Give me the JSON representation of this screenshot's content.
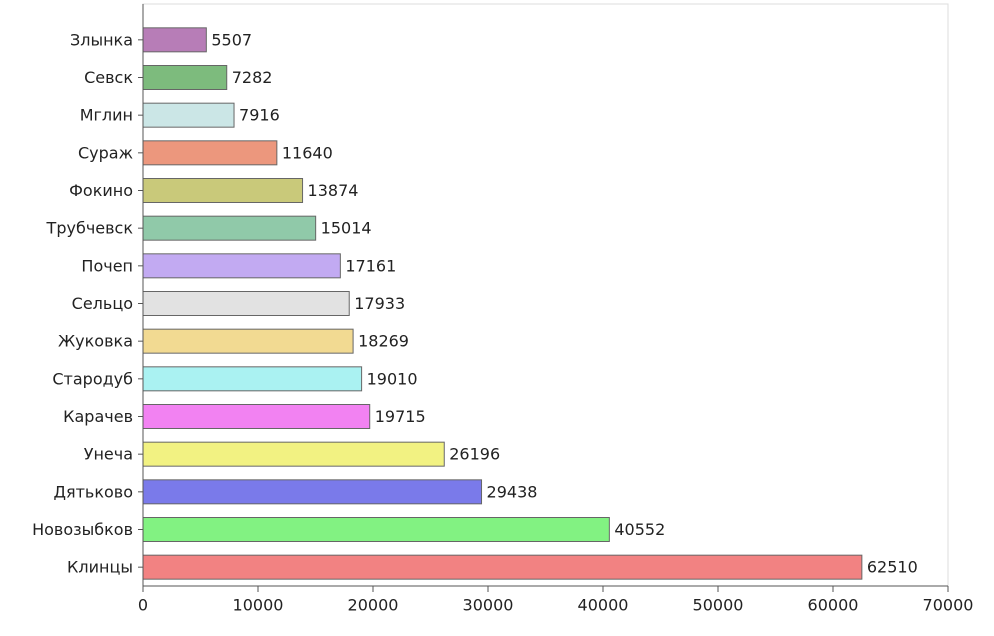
{
  "chart_data": {
    "type": "hbar",
    "categories": [
      "Злынка",
      "Севск",
      "Мглин",
      "Сураж",
      "Фокино",
      "Трубчевск",
      "Почеп",
      "Сельцо",
      "Жуковка",
      "Стародуб",
      "Карачев",
      "Унеча",
      "Дятьково",
      "Новозыбков",
      "Клинцы"
    ],
    "values": [
      5507,
      7282,
      7916,
      11640,
      13874,
      15014,
      17161,
      17933,
      18269,
      19010,
      19715,
      26196,
      29438,
      40552,
      62510
    ],
    "colors": [
      "#b77db7",
      "#7dbb7d",
      "#cbe6e6",
      "#ec977d",
      "#c9c97a",
      "#90c9a9",
      "#c2aaf2",
      "#e2e2e2",
      "#f2da92",
      "#aaf2f2",
      "#f282f2",
      "#f2f282",
      "#7a7aea",
      "#82f282",
      "#f28282"
    ],
    "xlim": [
      0,
      70000
    ],
    "xticks": [
      0,
      10000,
      20000,
      30000,
      40000,
      50000,
      60000,
      70000
    ]
  }
}
